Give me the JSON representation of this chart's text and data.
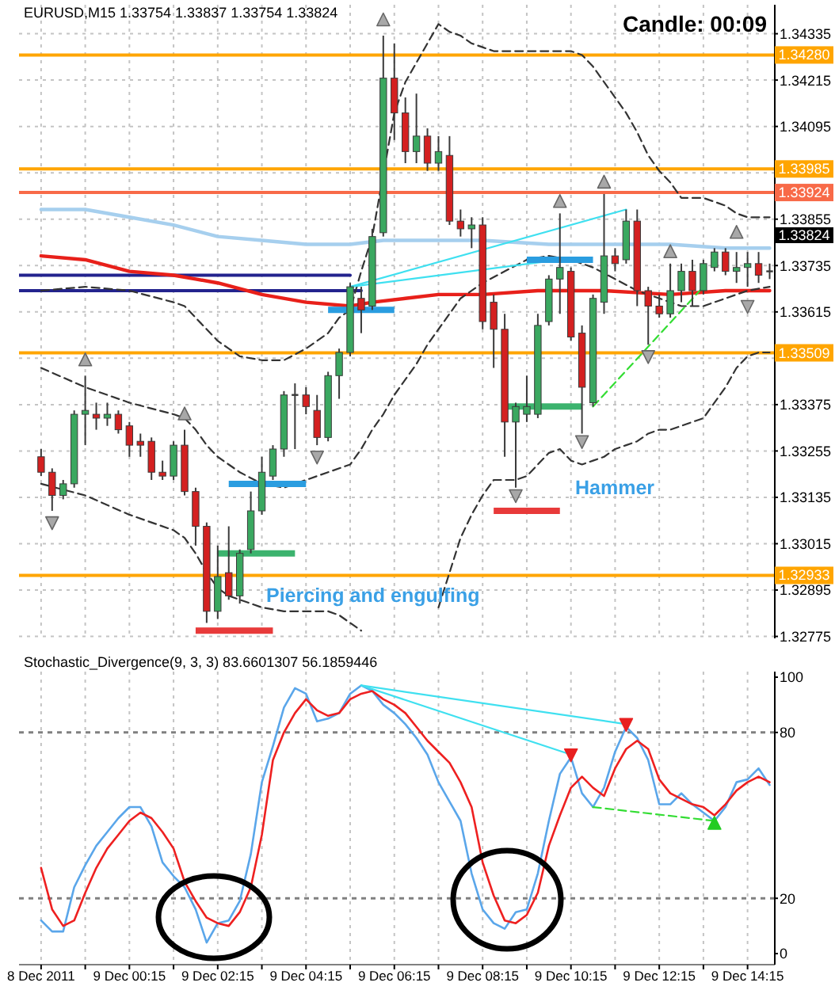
{
  "chart_data": [
    {
      "type": "candlestick",
      "title": "EURUSD,M15 1.33754 1.33837 1.33754 1.33824",
      "x": [
        "2011-12-08T22:15",
        "2011-12-08T22:30",
        "2011-12-08T22:45",
        "2011-12-08T23:00",
        "2011-12-08T23:15",
        "2011-12-08T23:30",
        "2011-12-08T23:45",
        "2011-12-09T00:00",
        "2011-12-09T00:15",
        "2011-12-09T00:30",
        "2011-12-09T00:45",
        "2011-12-09T01:00",
        "2011-12-09T01:15",
        "2011-12-09T01:30",
        "2011-12-09T01:45",
        "2011-12-09T02:00",
        "2011-12-09T02:15",
        "2011-12-09T02:30",
        "2011-12-09T02:45",
        "2011-12-09T03:00",
        "2011-12-09T03:15",
        "2011-12-09T03:30",
        "2011-12-09T03:45",
        "2011-12-09T04:00",
        "2011-12-09T04:15",
        "2011-12-09T04:30",
        "2011-12-09T04:45",
        "2011-12-09T05:00",
        "2011-12-09T05:15",
        "2011-12-09T05:30",
        "2011-12-09T05:45",
        "2011-12-09T06:00",
        "2011-12-09T06:15",
        "2011-12-09T06:30",
        "2011-12-09T06:45",
        "2011-12-09T07:00",
        "2011-12-09T07:15",
        "2011-12-09T07:30",
        "2011-12-09T07:45",
        "2011-12-09T08:00",
        "2011-12-09T08:15",
        "2011-12-09T08:30",
        "2011-12-09T08:45",
        "2011-12-09T09:00",
        "2011-12-09T09:15",
        "2011-12-09T09:30",
        "2011-12-09T09:45",
        "2011-12-09T10:00",
        "2011-12-09T10:15",
        "2011-12-09T10:30",
        "2011-12-09T10:45",
        "2011-12-09T11:00",
        "2011-12-09T11:15",
        "2011-12-09T11:30",
        "2011-12-09T11:45",
        "2011-12-09T12:00",
        "2011-12-09T12:15",
        "2011-12-09T12:30",
        "2011-12-09T12:45",
        "2011-12-09T13:00",
        "2011-12-09T13:15",
        "2011-12-09T13:30",
        "2011-12-09T13:45",
        "2011-12-09T14:00",
        "2011-12-09T14:15",
        "2011-12-09T14:30",
        "2011-12-09T14:45"
      ],
      "ohlc": [
        [
          1.3324,
          1.3326,
          1.3319,
          1.332
        ],
        [
          1.332,
          1.3321,
          1.331,
          1.3314
        ],
        [
          1.3314,
          1.3318,
          1.3313,
          1.3317
        ],
        [
          1.3317,
          1.3336,
          1.3316,
          1.3335
        ],
        [
          1.3335,
          1.3345,
          1.3327,
          1.3336
        ],
        [
          1.3335,
          1.3338,
          1.3331,
          1.3334
        ],
        [
          1.3334,
          1.3338,
          1.3332,
          1.3335
        ],
        [
          1.3335,
          1.3336,
          1.333,
          1.3331
        ],
        [
          1.3332,
          1.3333,
          1.3324,
          1.3327
        ],
        [
          1.3328,
          1.333,
          1.3324,
          1.3327
        ],
        [
          1.3328,
          1.3329,
          1.3318,
          1.332
        ],
        [
          1.332,
          1.3323,
          1.3318,
          1.3319
        ],
        [
          1.3319,
          1.3328,
          1.3318,
          1.3327
        ],
        [
          1.3327,
          1.3331,
          1.3314,
          1.3315
        ],
        [
          1.3315,
          1.3316,
          1.3301,
          1.3306
        ],
        [
          1.3306,
          1.3307,
          1.3281,
          1.3284
        ],
        [
          1.3284,
          1.3301,
          1.3282,
          1.3293
        ],
        [
          1.3294,
          1.3306,
          1.3287,
          1.3288
        ],
        [
          1.3288,
          1.33,
          1.3286,
          1.3299
        ],
        [
          1.33,
          1.3315,
          1.3299,
          1.331
        ],
        [
          1.331,
          1.3324,
          1.3309,
          1.332
        ],
        [
          1.3319,
          1.3327,
          1.3318,
          1.3326
        ],
        [
          1.3326,
          1.3341,
          1.3324,
          1.334
        ],
        [
          1.334,
          1.3343,
          1.3326,
          1.334
        ],
        [
          1.334,
          1.3342,
          1.3335,
          1.3337
        ],
        [
          1.3336,
          1.334,
          1.3327,
          1.3329
        ],
        [
          1.3329,
          1.3346,
          1.3328,
          1.3345
        ],
        [
          1.3345,
          1.3352,
          1.3339,
          1.3351
        ],
        [
          1.3351,
          1.3369,
          1.335,
          1.3368
        ],
        [
          1.3365,
          1.3368,
          1.3356,
          1.3362
        ],
        [
          1.3363,
          1.3383,
          1.3362,
          1.3381
        ],
        [
          1.3382,
          1.3433,
          1.3381,
          1.3422
        ],
        [
          1.3422,
          1.3431,
          1.3406,
          1.3413
        ],
        [
          1.3413,
          1.3417,
          1.34,
          1.3403
        ],
        [
          1.3403,
          1.3418,
          1.34,
          1.3407
        ],
        [
          1.3407,
          1.3409,
          1.3398,
          1.34
        ],
        [
          1.34,
          1.3407,
          1.3398,
          1.3403
        ],
        [
          1.3402,
          1.3407,
          1.3384,
          1.3385
        ],
        [
          1.3385,
          1.3388,
          1.3381,
          1.3383
        ],
        [
          1.3383,
          1.3386,
          1.3378,
          1.3384
        ],
        [
          1.3384,
          1.3386,
          1.3357,
          1.3359
        ],
        [
          1.3364,
          1.3366,
          1.3347,
          1.3357
        ],
        [
          1.3357,
          1.3361,
          1.3324,
          1.3333
        ],
        [
          1.3333,
          1.3338,
          1.3316,
          1.3337
        ],
        [
          1.3335,
          1.3345,
          1.3333,
          1.3337
        ],
        [
          1.3335,
          1.3361,
          1.3334,
          1.3358
        ],
        [
          1.3359,
          1.3371,
          1.3358,
          1.337
        ],
        [
          1.337,
          1.3387,
          1.3361,
          1.3373
        ],
        [
          1.3372,
          1.3373,
          1.3354,
          1.3355
        ],
        [
          1.3356,
          1.3358,
          1.333,
          1.3342
        ],
        [
          1.3338,
          1.3366,
          1.3337,
          1.3365
        ],
        [
          1.3364,
          1.3392,
          1.3361,
          1.3376
        ],
        [
          1.3376,
          1.3378,
          1.3372,
          1.3374
        ],
        [
          1.3375,
          1.3388,
          1.3374,
          1.3385
        ],
        [
          1.3385,
          1.3388,
          1.3363,
          1.3367
        ],
        [
          1.3367,
          1.3368,
          1.3353,
          1.3363
        ],
        [
          1.3363,
          1.3366,
          1.336,
          1.3361
        ],
        [
          1.3361,
          1.3374,
          1.336,
          1.3367
        ],
        [
          1.3367,
          1.3374,
          1.3364,
          1.3372
        ],
        [
          1.3372,
          1.3375,
          1.3363,
          1.3367
        ],
        [
          1.3367,
          1.3375,
          1.3366,
          1.3374
        ],
        [
          1.3373,
          1.3378,
          1.3372,
          1.3377
        ],
        [
          1.3377,
          1.3378,
          1.3371,
          1.3372
        ],
        [
          1.3372,
          1.3377,
          1.3369,
          1.3373
        ],
        [
          1.3373,
          1.3377,
          1.3368,
          1.3374
        ],
        [
          1.3374,
          1.3377,
          1.3369,
          1.3371
        ],
        [
          1.3372,
          1.3374,
          1.337,
          1.3372
        ]
      ],
      "series": [
        {
          "type": "line",
          "color": "#23238e",
          "x": [
            "2011-12-08T21:45",
            "2011-12-09T05:15"
          ],
          "values": [
            1.3371,
            1.3371
          ]
        },
        {
          "type": "line",
          "color": "#23238e",
          "x": [
            "2011-12-08T21:45",
            "2011-12-09T05:30"
          ],
          "values": [
            1.3367,
            1.3367
          ]
        },
        {
          "type": "line",
          "color": "#a6cfee",
          "x": [
            "2011-12-08T22:15",
            "2011-12-08T23:15",
            "2011-12-09T00:15",
            "2011-12-09T01:15",
            "2011-12-09T02:15",
            "2011-12-09T03:15",
            "2011-12-09T04:15",
            "2011-12-09T05:15",
            "2011-12-09T06:00",
            "2011-12-09T07:00",
            "2011-12-09T08:15",
            "2011-12-09T09:45",
            "2011-12-09T11:00",
            "2011-12-09T12:30",
            "2011-12-09T13:45",
            "2011-12-09T14:45"
          ],
          "values": [
            1.3388,
            1.3388,
            1.3386,
            1.3384,
            1.3381,
            1.338,
            1.3379,
            1.3379,
            1.338,
            1.338,
            1.338,
            1.3379,
            1.3379,
            1.3379,
            1.3378,
            1.3378
          ]
        },
        {
          "type": "line",
          "color": "#e8201a",
          "x": [
            "2011-12-08T22:15",
            "2011-12-08T23:15",
            "2011-12-09T00:15",
            "2011-12-09T01:15",
            "2011-12-09T01:45",
            "2011-12-09T02:15",
            "2011-12-09T03:15",
            "2011-12-09T04:15",
            "2011-12-09T05:15",
            "2011-12-09T05:45",
            "2011-12-09T06:30",
            "2011-12-09T07:15",
            "2011-12-09T08:15",
            "2011-12-09T09:30",
            "2011-12-09T11:00",
            "2011-12-09T12:30",
            "2011-12-09T13:45",
            "2011-12-09T14:45"
          ],
          "values": [
            1.3376,
            1.3375,
            1.3372,
            1.3371,
            1.337,
            1.3369,
            1.3366,
            1.3364,
            1.3363,
            1.3364,
            1.3365,
            1.3366,
            1.3366,
            1.3367,
            1.3367,
            1.3366,
            1.3367,
            1.3367
          ]
        },
        {
          "type": "line",
          "color": "#333333",
          "line_style": "dashed",
          "x": [
            "2011-12-08T22:15",
            "2011-12-08T23:15",
            "2011-12-09T00:15",
            "2011-12-09T01:15",
            "2011-12-09T01:30",
            "2011-12-09T01:45",
            "2011-12-09T02:00",
            "2011-12-09T02:15",
            "2011-12-09T02:30",
            "2011-12-09T02:45",
            "2011-12-09T03:15",
            "2011-12-09T03:45",
            "2011-12-09T04:15",
            "2011-12-09T04:45",
            "2011-12-09T05:00",
            "2011-12-09T05:15",
            "2011-12-09T05:30",
            "2011-12-09T05:45",
            "2011-12-09T06:00",
            "2011-12-09T06:15",
            "2011-12-09T06:30",
            "2011-12-09T06:45",
            "2011-12-09T07:00",
            "2011-12-09T07:15",
            "2011-12-09T07:30",
            "2011-12-09T07:45",
            "2011-12-09T08:00",
            "2011-12-09T08:15",
            "2011-12-09T08:30",
            "2011-12-09T09:00",
            "2011-12-09T09:30",
            "2011-12-09T10:00",
            "2011-12-09T10:15",
            "2011-12-09T10:30",
            "2011-12-09T10:45",
            "2011-12-09T11:00",
            "2011-12-09T11:15",
            "2011-12-09T11:30",
            "2011-12-09T11:45",
            "2011-12-09T12:00",
            "2011-12-09T12:15",
            "2011-12-09T12:30",
            "2011-12-09T12:45",
            "2011-12-09T13:00",
            "2011-12-09T13:15",
            "2011-12-09T13:30",
            "2011-12-09T13:45",
            "2011-12-09T14:00",
            "2011-12-09T14:15",
            "2011-12-09T14:30",
            "2011-12-09T14:45"
          ],
          "values": [
            1.3367,
            1.3368,
            1.3367,
            1.3364,
            1.3363,
            1.336,
            1.3357,
            1.3354,
            1.3352,
            1.335,
            1.3349,
            1.3349,
            1.3352,
            1.3356,
            1.336,
            1.3362,
            1.3372,
            1.3381,
            1.3397,
            1.3413,
            1.3421,
            1.3426,
            1.3431,
            1.3436,
            1.3434,
            1.3433,
            1.3431,
            1.343,
            1.3429,
            1.3429,
            1.3429,
            1.3429,
            1.3429,
            1.3428,
            1.3425,
            1.3421,
            1.3417,
            1.3413,
            1.3408,
            1.3402,
            1.3398,
            1.3395,
            1.3391,
            1.3391,
            1.3391,
            1.339,
            1.3389,
            1.3387,
            1.3386,
            1.3386,
            1.3386
          ]
        },
        {
          "type": "line",
          "color": "#333333",
          "line_style": "dashed",
          "x": [
            "2011-12-08T22:15",
            "2011-12-08T23:15",
            "2011-12-09T00:15",
            "2011-12-09T01:15",
            "2011-12-09T01:30",
            "2011-12-09T01:45",
            "2011-12-09T02:00",
            "2011-12-09T02:15",
            "2011-12-09T02:30",
            "2011-12-09T02:45",
            "2011-12-09T03:15",
            "2011-12-09T03:45",
            "2011-12-09T04:15",
            "2011-12-09T04:45",
            "2011-12-09T05:15",
            "2011-12-09T05:30",
            "2011-12-09T05:45",
            "2011-12-09T06:00",
            "2011-12-09T06:15",
            "2011-12-09T06:30",
            "2011-12-09T06:45",
            "2011-12-09T07:00",
            "2011-12-09T07:15",
            "2011-12-09T07:30",
            "2011-12-09T07:45",
            "2011-12-09T08:15",
            "2011-12-09T08:45",
            "2011-12-09T09:15",
            "2011-12-09T09:45",
            "2011-12-09T10:15",
            "2011-12-09T10:45",
            "2011-12-09T11:15",
            "2011-12-09T11:45",
            "2011-12-09T12:15",
            "2011-12-09T12:45",
            "2011-12-09T13:15",
            "2011-12-09T13:45",
            "2011-12-09T14:15",
            "2011-12-09T14:45"
          ],
          "values": [
            1.3347,
            1.3342,
            1.3338,
            1.3335,
            1.3334,
            1.3331,
            1.3327,
            1.3324,
            1.3322,
            1.332,
            1.3317,
            1.3316,
            1.3318,
            1.332,
            1.3322,
            1.3326,
            1.3331,
            1.3335,
            1.334,
            1.3344,
            1.3348,
            1.3353,
            1.3357,
            1.3361,
            1.3365,
            1.3369,
            1.3372,
            1.3375,
            1.3376,
            1.3375,
            1.3373,
            1.337,
            1.3367,
            1.3365,
            1.3363,
            1.3363,
            1.3365,
            1.3367,
            1.3368
          ]
        },
        {
          "type": "line",
          "color": "#333333",
          "line_style": "dashed",
          "x": [
            "2011-12-08T22:15",
            "2011-12-08T23:15",
            "2011-12-09T00:15",
            "2011-12-09T01:15",
            "2011-12-09T01:30",
            "2011-12-09T01:45",
            "2011-12-09T02:00",
            "2011-12-09T02:15",
            "2011-12-09T02:30",
            "2011-12-09T02:45",
            "2011-12-09T03:15",
            "2011-12-09T03:45",
            "2011-12-09T04:15",
            "2011-12-09T04:45",
            "2011-12-09T05:00",
            "2011-12-09T05:15",
            "2011-12-09T05:30",
            "2011-12-09T05:45",
            "2011-12-09T07:00",
            "2011-12-09T07:15",
            "2011-12-09T07:30",
            "2011-12-09T07:45",
            "2011-12-09T08:00",
            "2011-12-09T08:15",
            "2011-12-09T08:30",
            "2011-12-09T09:00",
            "2011-12-09T09:15",
            "2011-12-09T09:30",
            "2011-12-09T09:45",
            "2011-12-09T10:00",
            "2011-12-09T10:15",
            "2011-12-09T10:30",
            "2011-12-09T10:45",
            "2011-12-09T11:00",
            "2011-12-09T11:15",
            "2011-12-09T11:30",
            "2011-12-09T11:45",
            "2011-12-09T12:00",
            "2011-12-09T12:15",
            "2011-12-09T12:30",
            "2011-12-09T12:45",
            "2011-12-09T13:00",
            "2011-12-09T13:15",
            "2011-12-09T13:30",
            "2011-12-09T13:45",
            "2011-12-09T14:00",
            "2011-12-09T14:15",
            "2011-12-09T14:30",
            "2011-12-09T14:45"
          ],
          "values": [
            1.3317,
            1.3314,
            1.3309,
            1.3305,
            1.3303,
            1.3299,
            1.3294,
            1.329,
            1.3288,
            1.3287,
            1.3285,
            1.3284,
            1.3284,
            1.3284,
            1.3283,
            1.3281,
            1.3279,
            null,
            null,
            1.3285,
            1.3294,
            1.3303,
            1.3309,
            1.3314,
            1.3318,
            1.3318,
            1.3319,
            1.3322,
            1.3325,
            1.3326,
            1.3323,
            1.3322,
            1.3323,
            1.3324,
            1.3326,
            1.3327,
            1.3328,
            1.333,
            1.3331,
            1.3331,
            1.3332,
            1.3333,
            1.3334,
            1.3338,
            1.3342,
            1.3347,
            1.335,
            1.3351,
            1.3351
          ]
        },
        {
          "type": "line",
          "color": "#3fe0f0",
          "x": [
            "2011-12-09T05:15",
            "2011-12-09T11:30"
          ],
          "values": [
            1.3368,
            1.3388
          ]
        },
        {
          "type": "line",
          "color": "#3fe0f0",
          "x": [
            "2011-12-09T05:15",
            "2011-12-09T10:00"
          ],
          "values": [
            1.3368,
            1.3375
          ]
        },
        {
          "type": "line",
          "color": "#33dd33",
          "line_style": "dashed",
          "x": [
            "2011-12-09T10:45",
            "2011-12-09T13:15"
          ],
          "values": [
            1.3337,
            1.3368
          ]
        },
        {
          "type": "line",
          "color": "#2a9de0",
          "x": [
            "2011-12-09T04:45",
            "2011-12-09T06:15"
          ],
          "values": [
            1.3362,
            1.3362
          ]
        },
        {
          "type": "line",
          "color": "#2a9de0",
          "x": [
            "2011-12-09T02:30",
            "2011-12-09T04:15"
          ],
          "values": [
            1.3317,
            1.3317
          ]
        },
        {
          "type": "line",
          "color": "#3cb36e",
          "x": [
            "2011-12-09T02:15",
            "2011-12-09T04:00"
          ],
          "values": [
            1.3299,
            1.3299
          ]
        },
        {
          "type": "line",
          "color": "#e83a3a",
          "x": [
            "2011-12-09T01:45",
            "2011-12-09T03:30"
          ],
          "values": [
            1.3279,
            1.3279
          ]
        },
        {
          "type": "line",
          "color": "#2a9de0",
          "x": [
            "2011-12-09T09:15",
            "2011-12-09T10:45"
          ],
          "values": [
            1.3375,
            1.3375
          ]
        },
        {
          "type": "line",
          "color": "#3cb36e",
          "x": [
            "2011-12-09T08:45",
            "2011-12-09T10:30"
          ],
          "values": [
            1.3337,
            1.3337
          ]
        },
        {
          "type": "line",
          "color": "#e83a3a",
          "x": [
            "2011-12-09T08:30",
            "2011-12-09T10:00"
          ],
          "values": [
            1.331,
            1.331
          ]
        },
        {
          "type": "scatter",
          "color": "#a8a8a8",
          "marker": "triangle",
          "x": [
            "2011-12-08T22:30",
            "2011-12-08T23:15",
            "2011-12-09T01:30",
            "2011-12-09T04:30",
            "2011-12-09T06:00",
            "2011-12-09T09:00",
            "2011-12-09T10:00",
            "2011-12-09T10:30",
            "2011-12-09T11:00",
            "2011-12-09T12:00",
            "2011-12-09T12:30",
            "2011-12-09T14:00",
            "2011-12-09T14:15"
          ],
          "values": [
            1.3307,
            1.3349,
            1.3335,
            1.3324,
            1.3437,
            1.3314,
            1.339,
            1.3328,
            1.3395,
            1.335,
            1.3377,
            1.3382,
            1.3363
          ]
        }
      ],
      "xlim": [
        "2011-12-08T21:45",
        "2011-12-09T14:52"
      ],
      "xticks": [
        {
          "value": "2011-12-08T22:15",
          "label": null
        },
        {
          "value": "2011-12-08T23:15",
          "label": null
        },
        {
          "value": "2011-12-09T00:15",
          "label": null
        },
        {
          "value": "2011-12-09T01:15",
          "label": null
        },
        {
          "value": "2011-12-09T02:15",
          "label": null
        },
        {
          "value": "2011-12-09T03:15",
          "label": null
        },
        {
          "value": "2011-12-09T04:15",
          "label": null
        },
        {
          "value": "2011-12-09T05:15",
          "label": null
        },
        {
          "value": "2011-12-09T06:15",
          "label": null
        },
        {
          "value": "2011-12-09T07:15",
          "label": null
        },
        {
          "value": "2011-12-09T08:15",
          "label": null
        },
        {
          "value": "2011-12-09T09:15",
          "label": null
        },
        {
          "value": "2011-12-09T10:15",
          "label": null
        },
        {
          "value": "2011-12-09T11:15",
          "label": null
        },
        {
          "value": "2011-12-09T12:15",
          "label": null
        },
        {
          "value": "2011-12-09T13:15",
          "label": null
        },
        {
          "value": "2011-12-09T14:15",
          "label": null
        }
      ],
      "ylim": [
        1.3277,
        1.3441
      ],
      "yticks": [
        1.32775,
        1.32895,
        1.33015,
        1.33135,
        1.33255,
        1.33375,
        {
          "value": 1.33495,
          "label": null
        },
        1.33615,
        1.33735,
        1.33855,
        {
          "value": 1.33975,
          "label": null
        },
        1.34095,
        1.34215,
        1.34335
      ],
      "grid": true,
      "tick_labels": "y",
      "ref_lines": [
        {
          "axis": "y",
          "value": 1.3428,
          "label": "1.34280",
          "color": "#ffa500"
        },
        {
          "axis": "y",
          "value": 1.33985,
          "label": "1.33985",
          "color": "#ffa500"
        },
        {
          "axis": "y",
          "value": 1.33924,
          "label": "1.33924",
          "color": "#f86a48"
        },
        {
          "axis": "y",
          "value": 1.33509,
          "label": "1.33509",
          "color": "#ffa500"
        },
        {
          "axis": "y",
          "value": 1.32933,
          "label": "1.32933",
          "color": "#ffa500"
        }
      ],
      "annotations": [
        "Candle: 00:09",
        "Piercing and engulfing",
        "Hammer",
        "1.33824"
      ]
    },
    {
      "type": "line",
      "title": "Stochastic_Divergence(9, 3, 3) 83.6601307 56.1859446",
      "x": [
        "2011-12-08T22:15",
        "2011-12-08T22:30",
        "2011-12-08T22:45",
        "2011-12-08T23:00",
        "2011-12-08T23:15",
        "2011-12-08T23:30",
        "2011-12-08T23:45",
        "2011-12-09T00:00",
        "2011-12-09T00:15",
        "2011-12-09T00:30",
        "2011-12-09T00:45",
        "2011-12-09T01:00",
        "2011-12-09T01:15",
        "2011-12-09T01:30",
        "2011-12-09T01:45",
        "2011-12-09T02:00",
        "2011-12-09T02:15",
        "2011-12-09T02:30",
        "2011-12-09T02:45",
        "2011-12-09T03:00",
        "2011-12-09T03:15",
        "2011-12-09T03:30",
        "2011-12-09T03:45",
        "2011-12-09T04:00",
        "2011-12-09T04:15",
        "2011-12-09T04:30",
        "2011-12-09T04:45",
        "2011-12-09T05:00",
        "2011-12-09T05:15",
        "2011-12-09T05:30",
        "2011-12-09T05:45",
        "2011-12-09T06:00",
        "2011-12-09T06:15",
        "2011-12-09T06:30",
        "2011-12-09T06:45",
        "2011-12-09T07:00",
        "2011-12-09T07:15",
        "2011-12-09T07:30",
        "2011-12-09T07:45",
        "2011-12-09T08:00",
        "2011-12-09T08:15",
        "2011-12-09T08:30",
        "2011-12-09T08:45",
        "2011-12-09T09:00",
        "2011-12-09T09:15",
        "2011-12-09T09:30",
        "2011-12-09T09:45",
        "2011-12-09T10:00",
        "2011-12-09T10:15",
        "2011-12-09T10:30",
        "2011-12-09T10:45",
        "2011-12-09T11:00",
        "2011-12-09T11:15",
        "2011-12-09T11:30",
        "2011-12-09T11:45",
        "2011-12-09T12:00",
        "2011-12-09T12:15",
        "2011-12-09T12:30",
        "2011-12-09T12:45",
        "2011-12-09T13:00",
        "2011-12-09T13:15",
        "2011-12-09T13:30",
        "2011-12-09T13:45",
        "2011-12-09T14:00",
        "2011-12-09T14:15",
        "2011-12-09T14:30",
        "2011-12-09T14:45"
      ],
      "series": [
        {
          "color": "#5aa6ea",
          "values": [
            12,
            8,
            8,
            24,
            32,
            39,
            44,
            49,
            53,
            53,
            46,
            33,
            28,
            24,
            16,
            4,
            11,
            12,
            19,
            36,
            62,
            75,
            89,
            96,
            94,
            84,
            85,
            87,
            94,
            97,
            95,
            90,
            87,
            83,
            78,
            72,
            62,
            55,
            48,
            29,
            16,
            11,
            9,
            15,
            16,
            29,
            48,
            65,
            71,
            58,
            53,
            60,
            73,
            82,
            78,
            70,
            54,
            54,
            58,
            54,
            51,
            48,
            53,
            62,
            63,
            67,
            61
          ]
        },
        {
          "color": "#ee2020",
          "values": [
            31,
            16,
            10,
            12,
            22,
            31,
            38,
            43,
            48,
            51,
            49,
            44,
            38,
            26,
            19,
            13,
            11,
            10,
            15,
            24,
            43,
            70,
            80,
            87,
            92,
            88,
            86,
            87,
            92,
            94,
            95,
            92,
            90,
            87,
            82,
            77,
            73,
            69,
            62,
            53,
            33,
            21,
            12,
            11,
            14,
            22,
            39,
            50,
            60,
            64,
            60,
            57,
            67,
            74,
            77,
            74,
            63,
            58,
            56,
            54,
            53,
            50,
            54,
            59,
            62,
            64,
            62
          ]
        },
        {
          "type": "line",
          "color": "#3fe0f0",
          "x": [
            "2011-12-09T05:30",
            "2011-12-09T10:15"
          ],
          "values": [
            97,
            72
          ]
        },
        {
          "type": "line",
          "color": "#3fe0f0",
          "x": [
            "2011-12-09T05:30",
            "2011-12-09T11:30"
          ],
          "values": [
            97,
            83
          ]
        },
        {
          "type": "line",
          "color": "#33dd33",
          "line_style": "dashed",
          "x": [
            "2011-12-09T10:45",
            "2011-12-09T13:30"
          ],
          "values": [
            53,
            48
          ]
        },
        {
          "type": "scatter",
          "color": "#e82020",
          "marker": "triangle",
          "x": [
            "2011-12-09T10:15",
            "2011-12-09T11:30"
          ],
          "values": [
            72,
            83
          ]
        },
        {
          "type": "scatter",
          "color": "#22cc22",
          "marker": "triangle",
          "x": [
            "2011-12-09T13:30"
          ],
          "values": [
            47
          ]
        }
      ],
      "xlim": [
        "2011-12-08T21:45",
        "2011-12-09T14:52"
      ],
      "xticks": [
        {
          "value": "2011-12-08T22:15",
          "label": "8 Dec 2011"
        },
        {
          "value": "2011-12-08T23:15",
          "label": null
        },
        {
          "value": "2011-12-09T00:15",
          "label": "9 Dec 00:15"
        },
        {
          "value": "2011-12-09T01:15",
          "label": null
        },
        {
          "value": "2011-12-09T02:15",
          "label": "9 Dec 02:15"
        },
        {
          "value": "2011-12-09T03:15",
          "label": null
        },
        {
          "value": "2011-12-09T04:15",
          "label": "9 Dec 04:15"
        },
        {
          "value": "2011-12-09T05:15",
          "label": null
        },
        {
          "value": "2011-12-09T06:15",
          "label": "9 Dec 06:15"
        },
        {
          "value": "2011-12-09T07:15",
          "label": null
        },
        {
          "value": "2011-12-09T08:15",
          "label": "9 Dec 08:15"
        },
        {
          "value": "2011-12-09T09:15",
          "label": null
        },
        {
          "value": "2011-12-09T10:15",
          "label": "9 Dec 10:15"
        },
        {
          "value": "2011-12-09T11:15",
          "label": null
        },
        {
          "value": "2011-12-09T12:15",
          "label": "9 Dec 12:15"
        },
        {
          "value": "2011-12-09T13:15",
          "label": null
        },
        {
          "value": "2011-12-09T14:15",
          "label": "9 Dec 14:15"
        }
      ],
      "ylim": [
        -4,
        102
      ],
      "yticks": [
        0,
        20,
        80,
        100
      ],
      "grid": "x",
      "ref_lines": [
        {
          "axis": "y",
          "value": 20,
          "color": "#808080",
          "line_style": "dashed"
        },
        {
          "axis": "y",
          "value": 80,
          "color": "#808080",
          "line_style": "dashed"
        }
      ]
    }
  ]
}
